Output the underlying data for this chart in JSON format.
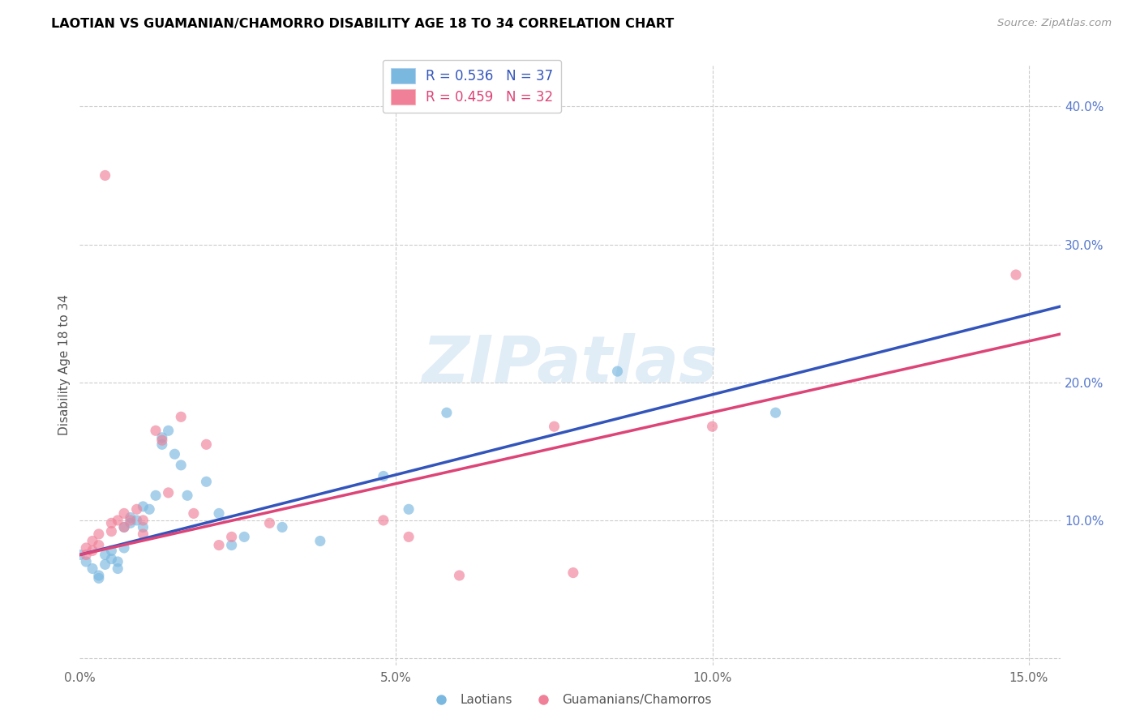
{
  "title": "LAOTIAN VS GUAMANIAN/CHAMORRO DISABILITY AGE 18 TO 34 CORRELATION CHART",
  "source": "Source: ZipAtlas.com",
  "ylabel": "Disability Age 18 to 34",
  "xlim": [
    0.0,
    0.155
  ],
  "ylim": [
    -0.005,
    0.43
  ],
  "xtick_labels": [
    "0.0%",
    "5.0%",
    "10.0%",
    "15.0%"
  ],
  "xtick_vals": [
    0.0,
    0.05,
    0.1,
    0.15
  ],
  "ytick_labels": [
    "10.0%",
    "20.0%",
    "30.0%",
    "40.0%"
  ],
  "ytick_vals": [
    0.1,
    0.2,
    0.3,
    0.4
  ],
  "laotian_color": "#7ab8e0",
  "guamanian_color": "#f08098",
  "line_blue": "#3355bb",
  "line_pink": "#dd4477",
  "watermark": "ZIPatlas",
  "laotian_r": 0.536,
  "laotian_n": 37,
  "guamanian_r": 0.459,
  "guamanian_n": 32,
  "laotian_points": [
    [
      0.001,
      0.07
    ],
    [
      0.002,
      0.065
    ],
    [
      0.003,
      0.06
    ],
    [
      0.003,
      0.058
    ],
    [
      0.004,
      0.068
    ],
    [
      0.004,
      0.075
    ],
    [
      0.005,
      0.072
    ],
    [
      0.005,
      0.078
    ],
    [
      0.006,
      0.065
    ],
    [
      0.006,
      0.07
    ],
    [
      0.007,
      0.08
    ],
    [
      0.007,
      0.095
    ],
    [
      0.008,
      0.098
    ],
    [
      0.008,
      0.102
    ],
    [
      0.009,
      0.1
    ],
    [
      0.01,
      0.095
    ],
    [
      0.01,
      0.11
    ],
    [
      0.011,
      0.108
    ],
    [
      0.012,
      0.118
    ],
    [
      0.013,
      0.155
    ],
    [
      0.013,
      0.16
    ],
    [
      0.014,
      0.165
    ],
    [
      0.015,
      0.148
    ],
    [
      0.016,
      0.14
    ],
    [
      0.017,
      0.118
    ],
    [
      0.02,
      0.128
    ],
    [
      0.022,
      0.105
    ],
    [
      0.024,
      0.082
    ],
    [
      0.026,
      0.088
    ],
    [
      0.032,
      0.095
    ],
    [
      0.038,
      0.085
    ],
    [
      0.048,
      0.132
    ],
    [
      0.052,
      0.108
    ],
    [
      0.058,
      0.178
    ],
    [
      0.085,
      0.208
    ],
    [
      0.11,
      0.178
    ],
    [
      0.0,
      0.075
    ]
  ],
  "guamanian_points": [
    [
      0.001,
      0.075
    ],
    [
      0.001,
      0.08
    ],
    [
      0.002,
      0.078
    ],
    [
      0.002,
      0.085
    ],
    [
      0.003,
      0.082
    ],
    [
      0.003,
      0.09
    ],
    [
      0.004,
      0.35
    ],
    [
      0.005,
      0.098
    ],
    [
      0.005,
      0.092
    ],
    [
      0.006,
      0.1
    ],
    [
      0.007,
      0.095
    ],
    [
      0.007,
      0.105
    ],
    [
      0.008,
      0.1
    ],
    [
      0.009,
      0.108
    ],
    [
      0.01,
      0.09
    ],
    [
      0.01,
      0.1
    ],
    [
      0.012,
      0.165
    ],
    [
      0.013,
      0.158
    ],
    [
      0.014,
      0.12
    ],
    [
      0.016,
      0.175
    ],
    [
      0.018,
      0.105
    ],
    [
      0.02,
      0.155
    ],
    [
      0.022,
      0.082
    ],
    [
      0.024,
      0.088
    ],
    [
      0.03,
      0.098
    ],
    [
      0.048,
      0.1
    ],
    [
      0.052,
      0.088
    ],
    [
      0.06,
      0.06
    ],
    [
      0.075,
      0.168
    ],
    [
      0.078,
      0.062
    ],
    [
      0.1,
      0.168
    ],
    [
      0.148,
      0.278
    ]
  ]
}
